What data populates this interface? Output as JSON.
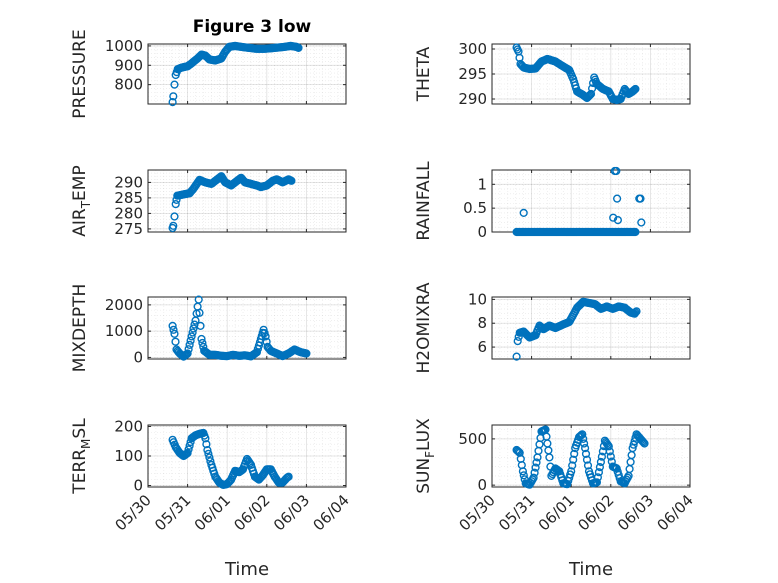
{
  "figure": {
    "title": "Figure 3 low",
    "marker_color": "#0072BD"
  },
  "chart_data": [
    {
      "type": "scatter",
      "ylabel": "PRESSURE",
      "xlabel": "",
      "xlim": [
        0,
        5
      ],
      "ylim": [
        700,
        1010
      ],
      "yticks": [
        800,
        900,
        1000
      ],
      "xtick_labels": [
        "05/30",
        "05/31",
        "06/01",
        "06/02",
        "06/03",
        "06/04"
      ],
      "show_x_tick_labels": false,
      "grid": true,
      "keyframes": [
        [
          0.62,
          710
        ],
        [
          0.64,
          740
        ],
        [
          0.67,
          800
        ],
        [
          0.7,
          850
        ],
        [
          0.75,
          880
        ],
        [
          0.85,
          888
        ],
        [
          1.0,
          895
        ],
        [
          1.1,
          910
        ],
        [
          1.25,
          935
        ],
        [
          1.35,
          955
        ],
        [
          1.45,
          950
        ],
        [
          1.55,
          930
        ],
        [
          1.7,
          925
        ],
        [
          1.85,
          935
        ],
        [
          1.95,
          970
        ],
        [
          2.05,
          995
        ],
        [
          2.2,
          1000
        ],
        [
          2.35,
          995
        ],
        [
          2.55,
          990
        ],
        [
          2.75,
          985
        ],
        [
          2.95,
          985
        ],
        [
          3.2,
          990
        ],
        [
          3.45,
          995
        ],
        [
          3.6,
          1000
        ],
        [
          3.75,
          995
        ],
        [
          3.8,
          990
        ]
      ]
    },
    {
      "type": "scatter",
      "ylabel": "THETA",
      "xlabel": "",
      "xlim": [
        0,
        5
      ],
      "ylim": [
        289,
        301
      ],
      "yticks": [
        290,
        295,
        300
      ],
      "xtick_labels": [
        "05/30",
        "05/31",
        "06/01",
        "06/02",
        "06/03",
        "06/04"
      ],
      "show_x_tick_labels": false,
      "grid": true,
      "keyframes": [
        [
          0.62,
          300.3
        ],
        [
          0.67,
          299.5
        ],
        [
          0.72,
          297
        ],
        [
          0.8,
          296.3
        ],
        [
          0.95,
          296
        ],
        [
          1.1,
          296.1
        ],
        [
          1.25,
          297.5
        ],
        [
          1.4,
          298
        ],
        [
          1.6,
          297.5
        ],
        [
          1.8,
          296.5
        ],
        [
          1.95,
          295.8
        ],
        [
          2.05,
          294
        ],
        [
          2.15,
          291.5
        ],
        [
          2.3,
          290.8
        ],
        [
          2.4,
          290.2
        ],
        [
          2.5,
          291
        ],
        [
          2.58,
          294.3
        ],
        [
          2.65,
          293
        ],
        [
          2.8,
          292
        ],
        [
          2.95,
          291.5
        ],
        [
          3.05,
          290
        ],
        [
          3.15,
          289.8
        ],
        [
          3.25,
          290
        ],
        [
          3.35,
          292
        ],
        [
          3.45,
          291
        ],
        [
          3.55,
          291.5
        ],
        [
          3.62,
          292
        ]
      ]
    },
    {
      "type": "scatter",
      "ylabel": "AIR_TEMP",
      "xlabel": "",
      "xlim": [
        0,
        5
      ],
      "ylim": [
        274,
        294
      ],
      "yticks": [
        275,
        280,
        285,
        290
      ],
      "xtick_labels": [
        "05/30",
        "05/31",
        "06/01",
        "06/02",
        "06/03",
        "06/04"
      ],
      "show_x_tick_labels": false,
      "grid": true,
      "keyframes": [
        [
          0.62,
          275.3
        ],
        [
          0.64,
          276
        ],
        [
          0.67,
          279
        ],
        [
          0.7,
          283
        ],
        [
          0.74,
          285.7
        ],
        [
          0.85,
          286
        ],
        [
          1.05,
          286.5
        ],
        [
          1.15,
          288
        ],
        [
          1.3,
          290.8
        ],
        [
          1.45,
          290
        ],
        [
          1.6,
          289.5
        ],
        [
          1.75,
          291
        ],
        [
          1.85,
          292
        ],
        [
          1.95,
          290
        ],
        [
          2.1,
          289
        ],
        [
          2.25,
          290.5
        ],
        [
          2.35,
          291.5
        ],
        [
          2.45,
          290
        ],
        [
          2.6,
          289.5
        ],
        [
          2.75,
          289
        ],
        [
          2.85,
          288.5
        ],
        [
          3.0,
          289
        ],
        [
          3.15,
          290.5
        ],
        [
          3.25,
          291
        ],
        [
          3.4,
          290
        ],
        [
          3.55,
          291
        ],
        [
          3.62,
          290.5
        ]
      ]
    },
    {
      "type": "scatter",
      "ylabel": "RAINFALL",
      "xlabel": "",
      "xlim": [
        0,
        5
      ],
      "ylim": [
        0,
        1.3
      ],
      "yticks": [
        0,
        0.5,
        1
      ],
      "xtick_labels": [
        "05/30",
        "05/31",
        "06/01",
        "06/02",
        "06/03",
        "06/04"
      ],
      "show_x_tick_labels": false,
      "grid": true,
      "keyframes": [
        [
          0.62,
          0
        ],
        [
          3.62,
          0
        ]
      ],
      "extra_points": [
        [
          0.8,
          0.4
        ],
        [
          3.06,
          0.3
        ],
        [
          3.1,
          1.28
        ],
        [
          3.14,
          1.28
        ],
        [
          3.16,
          0.7
        ],
        [
          3.18,
          0.25
        ],
        [
          3.72,
          0.7
        ],
        [
          3.75,
          0.7
        ],
        [
          3.77,
          0.2
        ]
      ]
    },
    {
      "type": "scatter",
      "ylabel": "MIXDEPTH",
      "xlabel": "",
      "xlim": [
        0,
        5
      ],
      "ylim": [
        -60,
        2300
      ],
      "yticks": [
        0,
        1000,
        2000
      ],
      "xtick_labels": [
        "05/30",
        "05/31",
        "06/01",
        "06/02",
        "06/03",
        "06/04"
      ],
      "show_x_tick_labels": false,
      "grid": true,
      "keyframes": [
        [
          0.62,
          1200
        ],
        [
          0.67,
          900
        ],
        [
          0.72,
          300
        ],
        [
          0.8,
          150
        ],
        [
          0.9,
          30
        ],
        [
          1.0,
          150
        ],
        [
          1.1,
          800
        ],
        [
          1.2,
          1400
        ],
        [
          1.28,
          2200
        ],
        [
          1.3,
          1700
        ],
        [
          1.35,
          700
        ],
        [
          1.42,
          250
        ],
        [
          1.55,
          100
        ],
        [
          1.7,
          100
        ],
        [
          1.85,
          60
        ],
        [
          2.0,
          50
        ],
        [
          2.15,
          100
        ],
        [
          2.3,
          60
        ],
        [
          2.45,
          80
        ],
        [
          2.6,
          40
        ],
        [
          2.75,
          200
        ],
        [
          2.85,
          700
        ],
        [
          2.92,
          1050
        ],
        [
          2.97,
          800
        ],
        [
          3.02,
          400
        ],
        [
          3.1,
          250
        ],
        [
          3.25,
          150
        ],
        [
          3.4,
          50
        ],
        [
          3.55,
          150
        ],
        [
          3.7,
          300
        ],
        [
          3.85,
          200
        ],
        [
          4.0,
          150
        ]
      ]
    },
    {
      "type": "scatter",
      "ylabel": "H2OMIXRA",
      "xlabel": "",
      "xlim": [
        0,
        5
      ],
      "ylim": [
        5,
        10.2
      ],
      "yticks": [
        6,
        8,
        10
      ],
      "xtick_labels": [
        "05/30",
        "05/31",
        "06/01",
        "06/02",
        "06/03",
        "06/04"
      ],
      "show_x_tick_labels": false,
      "grid": true,
      "keyframes": [
        [
          0.62,
          5.2
        ],
        [
          0.65,
          6.5
        ],
        [
          0.7,
          7.2
        ],
        [
          0.8,
          7.3
        ],
        [
          0.95,
          6.8
        ],
        [
          1.1,
          7
        ],
        [
          1.2,
          7.8
        ],
        [
          1.3,
          7.5
        ],
        [
          1.45,
          7.8
        ],
        [
          1.6,
          7.6
        ],
        [
          1.8,
          7.9
        ],
        [
          1.95,
          8.1
        ],
        [
          2.05,
          8.7
        ],
        [
          2.15,
          9.3
        ],
        [
          2.3,
          9.8
        ],
        [
          2.45,
          9.7
        ],
        [
          2.6,
          9.6
        ],
        [
          2.75,
          9.2
        ],
        [
          2.9,
          9.4
        ],
        [
          3.05,
          9.2
        ],
        [
          3.2,
          9.4
        ],
        [
          3.35,
          9.3
        ],
        [
          3.5,
          8.9
        ],
        [
          3.6,
          8.8
        ],
        [
          3.65,
          9
        ]
      ]
    },
    {
      "type": "scatter",
      "ylabel": "TERR_MSL",
      "xlabel": "Time",
      "xlim": [
        0,
        5
      ],
      "ylim": [
        -5,
        205
      ],
      "yticks": [
        0,
        100,
        200
      ],
      "xtick_labels": [
        "05/30",
        "05/31",
        "06/01",
        "06/02",
        "06/03",
        "06/04"
      ],
      "show_x_tick_labels": true,
      "grid": true,
      "keyframes": [
        [
          0.62,
          155
        ],
        [
          0.7,
          130
        ],
        [
          0.8,
          110
        ],
        [
          0.9,
          100
        ],
        [
          1.0,
          110
        ],
        [
          1.1,
          160
        ],
        [
          1.2,
          170
        ],
        [
          1.3,
          175
        ],
        [
          1.4,
          178
        ],
        [
          1.45,
          160
        ],
        [
          1.5,
          120
        ],
        [
          1.6,
          70
        ],
        [
          1.7,
          30
        ],
        [
          1.8,
          10
        ],
        [
          1.9,
          2
        ],
        [
          2.0,
          5
        ],
        [
          2.1,
          20
        ],
        [
          2.2,
          50
        ],
        [
          2.3,
          45
        ],
        [
          2.4,
          55
        ],
        [
          2.5,
          90
        ],
        [
          2.6,
          70
        ],
        [
          2.7,
          30
        ],
        [
          2.8,
          20
        ],
        [
          2.9,
          35
        ],
        [
          3.0,
          55
        ],
        [
          3.1,
          55
        ],
        [
          3.2,
          30
        ],
        [
          3.3,
          10
        ],
        [
          3.4,
          10
        ],
        [
          3.5,
          25
        ],
        [
          3.55,
          30
        ]
      ]
    },
    {
      "type": "scatter",
      "ylabel": "SUN_FLUX",
      "xlabel": "Time",
      "xlim": [
        0,
        5
      ],
      "ylim": [
        -20,
        650
      ],
      "yticks": [
        0,
        500
      ],
      "xtick_labels": [
        "05/30",
        "05/31",
        "06/01",
        "06/02",
        "06/03",
        "06/04"
      ],
      "show_x_tick_labels": true,
      "grid": true,
      "keyframes": [
        [
          0.62,
          380
        ],
        [
          0.7,
          350
        ],
        [
          0.78,
          150
        ],
        [
          0.85,
          20
        ],
        [
          0.95,
          5
        ],
        [
          1.05,
          80
        ],
        [
          1.15,
          300
        ],
        [
          1.25,
          580
        ],
        [
          1.35,
          600
        ],
        [
          1.45,
          300
        ],
        [
          1.5,
          100
        ],
        [
          1.6,
          180
        ],
        [
          1.7,
          150
        ],
        [
          1.8,
          20
        ],
        [
          1.9,
          10
        ],
        [
          2.0,
          150
        ],
        [
          2.1,
          400
        ],
        [
          2.2,
          520
        ],
        [
          2.28,
          550
        ],
        [
          2.35,
          400
        ],
        [
          2.45,
          150
        ],
        [
          2.55,
          20
        ],
        [
          2.65,
          30
        ],
        [
          2.75,
          250
        ],
        [
          2.85,
          480
        ],
        [
          2.95,
          420
        ],
        [
          3.05,
          200
        ],
        [
          3.15,
          180
        ],
        [
          3.25,
          40
        ],
        [
          3.35,
          20
        ],
        [
          3.45,
          100
        ],
        [
          3.55,
          400
        ],
        [
          3.65,
          550
        ],
        [
          3.75,
          500
        ],
        [
          3.85,
          450
        ]
      ]
    }
  ]
}
